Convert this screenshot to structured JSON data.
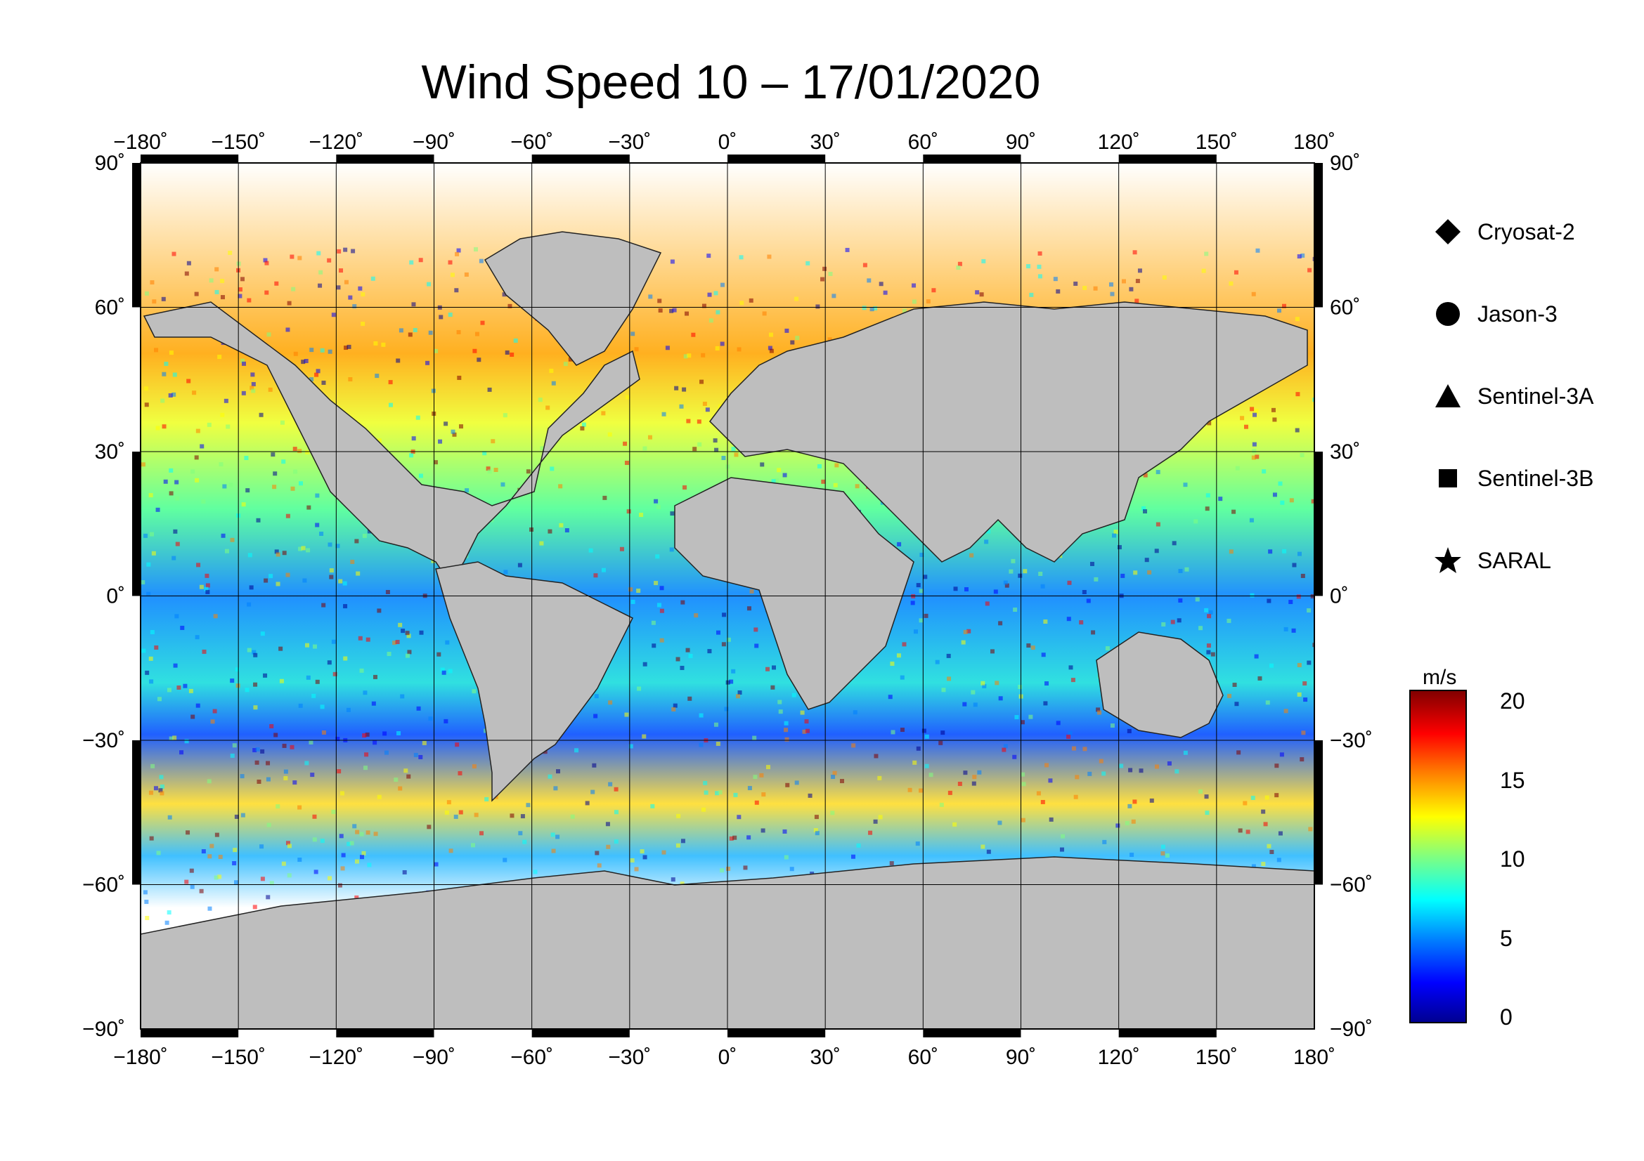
{
  "title": "Wind Speed 10 – 17/01/2020",
  "map": {
    "lon_ticks": [
      "−180˚",
      "−150˚",
      "−120˚",
      "−90˚",
      "−60˚",
      "−30˚",
      "0˚",
      "30˚",
      "60˚",
      "90˚",
      "120˚",
      "150˚",
      "180˚"
    ],
    "lat_ticks_left": [
      "90˚",
      "60˚",
      "30˚",
      "0˚",
      "−30˚",
      "−60˚",
      "−90˚"
    ],
    "lat_ticks_right": [
      "90˚",
      "60˚",
      "30˚",
      "0˚",
      "−30˚",
      "−60˚",
      "−90˚"
    ],
    "lon_range": [
      -180,
      180
    ],
    "lat_range": [
      -90,
      90
    ],
    "land_color": "#bebebe",
    "ice_color": "#ffffff",
    "grid": true
  },
  "legend": {
    "items": [
      {
        "label": "Cryosat-2",
        "icon": "diamond-icon"
      },
      {
        "label": "Jason-3",
        "icon": "circle-icon"
      },
      {
        "label": "Sentinel-3A",
        "icon": "triangle-icon"
      },
      {
        "label": "Sentinel-3B",
        "icon": "square-icon"
      },
      {
        "label": "SARAL",
        "icon": "star-icon"
      }
    ]
  },
  "colorbar": {
    "unit": "m/s",
    "min": 0,
    "max": 20,
    "ticks": [
      "20",
      "15",
      "10",
      "5",
      "0"
    ],
    "colors": [
      "#00008f",
      "#0000ff",
      "#0080ff",
      "#00ffff",
      "#80ff80",
      "#ffff00",
      "#ff8000",
      "#ff0000",
      "#800000"
    ]
  }
}
